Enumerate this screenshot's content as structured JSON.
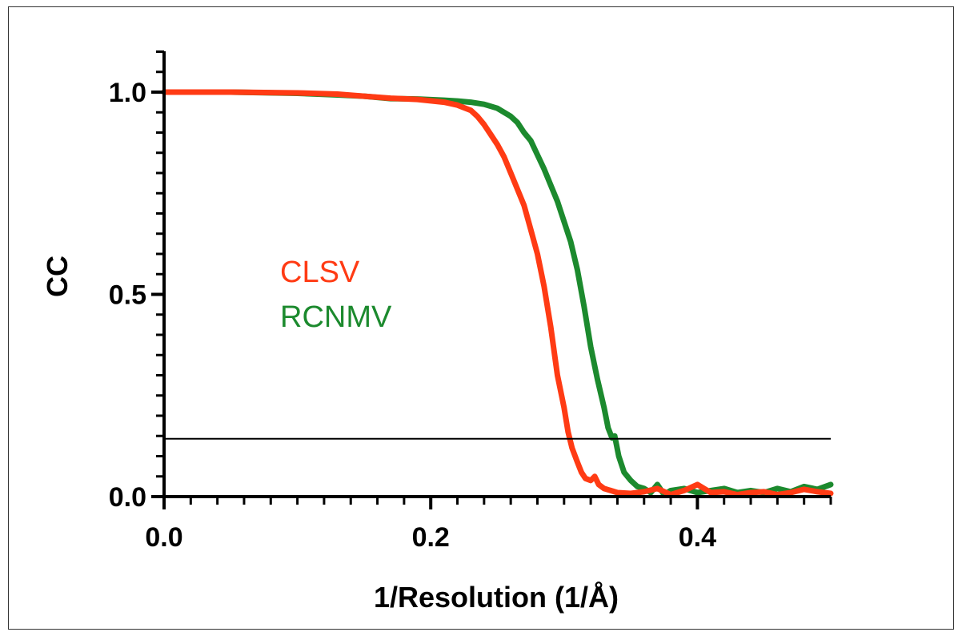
{
  "chart_data": {
    "type": "line",
    "xlabel": "1/Resolution (1/Å)",
    "ylabel": "CC",
    "xlim": [
      0.0,
      0.5
    ],
    "ylim": [
      0.0,
      1.1
    ],
    "x_tick_labels": [
      "0.0",
      "0.2",
      "0.4"
    ],
    "y_tick_labels": [
      "0.0",
      "0.5",
      "1.0"
    ],
    "x_ticks": [
      0.0,
      0.2,
      0.4
    ],
    "y_ticks": [
      0.0,
      0.5,
      1.0
    ],
    "x_minor_step": 0.02,
    "y_minor_step": 0.05,
    "threshold": 0.143,
    "grid": false,
    "legend_placement": "center-left",
    "series": [
      {
        "name": "CLSV",
        "color": "#ff3b14",
        "points": [
          [
            0.0,
            1.0
          ],
          [
            0.05,
            1.0
          ],
          [
            0.1,
            0.998
          ],
          [
            0.13,
            0.995
          ],
          [
            0.15,
            0.99
          ],
          [
            0.17,
            0.985
          ],
          [
            0.19,
            0.982
          ],
          [
            0.21,
            0.975
          ],
          [
            0.22,
            0.968
          ],
          [
            0.23,
            0.955
          ],
          [
            0.235,
            0.94
          ],
          [
            0.24,
            0.92
          ],
          [
            0.245,
            0.895
          ],
          [
            0.25,
            0.87
          ],
          [
            0.255,
            0.84
          ],
          [
            0.26,
            0.8
          ],
          [
            0.265,
            0.76
          ],
          [
            0.27,
            0.72
          ],
          [
            0.275,
            0.66
          ],
          [
            0.28,
            0.6
          ],
          [
            0.285,
            0.52
          ],
          [
            0.29,
            0.42
          ],
          [
            0.295,
            0.3
          ],
          [
            0.3,
            0.22
          ],
          [
            0.303,
            0.16
          ],
          [
            0.306,
            0.12
          ],
          [
            0.31,
            0.085
          ],
          [
            0.313,
            0.06
          ],
          [
            0.316,
            0.045
          ],
          [
            0.32,
            0.04
          ],
          [
            0.323,
            0.05
          ],
          [
            0.326,
            0.03
          ],
          [
            0.33,
            0.02
          ],
          [
            0.335,
            0.015
          ],
          [
            0.34,
            0.01
          ],
          [
            0.35,
            0.008
          ],
          [
            0.36,
            0.012
          ],
          [
            0.37,
            0.02
          ],
          [
            0.38,
            0.005
          ],
          [
            0.39,
            0.015
          ],
          [
            0.4,
            0.03
          ],
          [
            0.41,
            0.01
          ],
          [
            0.42,
            0.012
          ],
          [
            0.43,
            0.005
          ],
          [
            0.44,
            0.01
          ],
          [
            0.45,
            0.012
          ],
          [
            0.46,
            0.005
          ],
          [
            0.47,
            0.01
          ],
          [
            0.48,
            0.018
          ],
          [
            0.49,
            0.012
          ],
          [
            0.5,
            0.008
          ]
        ]
      },
      {
        "name": "RCNMV",
        "color": "#1c8a2e",
        "points": [
          [
            0.0,
            1.0
          ],
          [
            0.05,
            1.0
          ],
          [
            0.1,
            0.997
          ],
          [
            0.13,
            0.993
          ],
          [
            0.15,
            0.99
          ],
          [
            0.17,
            0.984
          ],
          [
            0.19,
            0.983
          ],
          [
            0.21,
            0.98
          ],
          [
            0.22,
            0.978
          ],
          [
            0.23,
            0.975
          ],
          [
            0.24,
            0.97
          ],
          [
            0.25,
            0.96
          ],
          [
            0.26,
            0.94
          ],
          [
            0.265,
            0.925
          ],
          [
            0.27,
            0.9
          ],
          [
            0.275,
            0.88
          ],
          [
            0.28,
            0.845
          ],
          [
            0.285,
            0.81
          ],
          [
            0.29,
            0.77
          ],
          [
            0.295,
            0.73
          ],
          [
            0.3,
            0.68
          ],
          [
            0.305,
            0.63
          ],
          [
            0.31,
            0.56
          ],
          [
            0.315,
            0.47
          ],
          [
            0.32,
            0.37
          ],
          [
            0.325,
            0.29
          ],
          [
            0.33,
            0.22
          ],
          [
            0.333,
            0.17
          ],
          [
            0.336,
            0.145
          ],
          [
            0.338,
            0.15
          ],
          [
            0.341,
            0.1
          ],
          [
            0.345,
            0.06
          ],
          [
            0.35,
            0.04
          ],
          [
            0.355,
            0.025
          ],
          [
            0.36,
            0.02
          ],
          [
            0.365,
            0.01
          ],
          [
            0.37,
            0.03
          ],
          [
            0.375,
            0.005
          ],
          [
            0.38,
            0.015
          ],
          [
            0.39,
            0.02
          ],
          [
            0.4,
            0.01
          ],
          [
            0.41,
            0.015
          ],
          [
            0.42,
            0.02
          ],
          [
            0.43,
            0.01
          ],
          [
            0.44,
            0.015
          ],
          [
            0.45,
            0.01
          ],
          [
            0.46,
            0.02
          ],
          [
            0.47,
            0.012
          ],
          [
            0.48,
            0.025
          ],
          [
            0.49,
            0.018
          ],
          [
            0.5,
            0.03
          ]
        ]
      }
    ]
  }
}
